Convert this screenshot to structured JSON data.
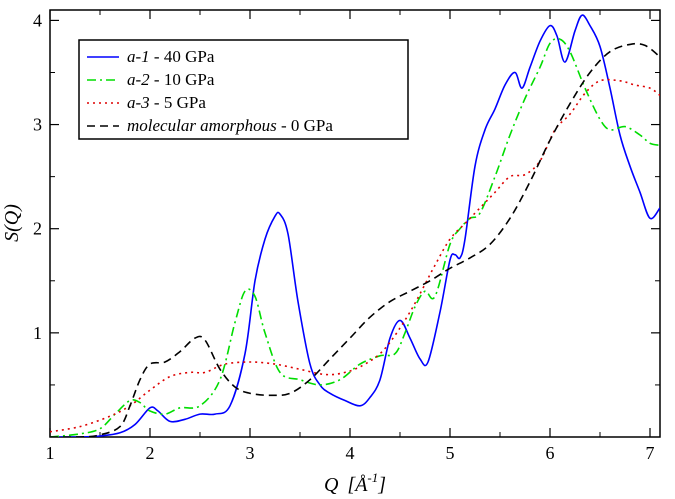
{
  "chart_data": {
    "type": "line",
    "title": "",
    "xlabel_main": "Q",
    "xlabel_unit": "[Å",
    "xlabel_sup": "-1",
    "xlabel_close": "]",
    "ylabel": "S(Q)",
    "xlim": [
      1,
      7.1
    ],
    "ylim": [
      0,
      4.1
    ],
    "xticks": [
      1,
      2,
      3,
      4,
      5,
      6,
      7
    ],
    "yticks": [
      1,
      2,
      3,
      4
    ],
    "grid": false,
    "legend_position": "top-left",
    "series": [
      {
        "name": "a-1",
        "label_italic": "a-1",
        "label_rest": " - 40 GPa",
        "color": "#0000ff",
        "dash": "solid",
        "x": [
          1.0,
          1.3,
          1.5,
          1.7,
          1.85,
          2.0,
          2.08,
          2.2,
          2.35,
          2.5,
          2.65,
          2.8,
          2.95,
          3.05,
          3.15,
          3.25,
          3.3,
          3.38,
          3.48,
          3.6,
          3.7,
          3.8,
          3.95,
          4.1,
          4.2,
          4.3,
          4.4,
          4.5,
          4.6,
          4.7,
          4.78,
          4.9,
          5.0,
          5.05,
          5.1,
          5.15,
          5.25,
          5.35,
          5.45,
          5.55,
          5.65,
          5.72,
          5.8,
          5.9,
          6.0,
          6.07,
          6.15,
          6.25,
          6.32,
          6.4,
          6.5,
          6.6,
          6.7,
          6.8,
          6.9,
          7.0,
          7.1
        ],
        "y": [
          0.0,
          0.0,
          0.01,
          0.04,
          0.12,
          0.28,
          0.25,
          0.15,
          0.17,
          0.22,
          0.22,
          0.3,
          0.8,
          1.5,
          1.9,
          2.12,
          2.14,
          1.95,
          1.3,
          0.7,
          0.5,
          0.42,
          0.35,
          0.3,
          0.38,
          0.55,
          0.95,
          1.12,
          0.95,
          0.75,
          0.72,
          1.2,
          1.7,
          1.75,
          1.72,
          1.9,
          2.6,
          2.95,
          3.15,
          3.38,
          3.5,
          3.35,
          3.55,
          3.8,
          3.95,
          3.85,
          3.6,
          3.9,
          4.05,
          3.95,
          3.75,
          3.35,
          2.9,
          2.6,
          2.35,
          2.1,
          2.2
        ]
      },
      {
        "name": "a-2",
        "label_italic": "a-2",
        "label_rest": " - 10 GPa",
        "color": "#00dd00",
        "dash": "dashdot",
        "x": [
          1.0,
          1.3,
          1.5,
          1.65,
          1.8,
          1.9,
          2.0,
          2.15,
          2.3,
          2.5,
          2.7,
          2.85,
          2.95,
          3.05,
          3.15,
          3.3,
          3.5,
          3.7,
          3.9,
          4.1,
          4.3,
          4.45,
          4.55,
          4.65,
          4.75,
          4.85,
          5.0,
          5.1,
          5.2,
          5.3,
          5.45,
          5.6,
          5.75,
          5.9,
          6.0,
          6.1,
          6.2,
          6.35,
          6.5,
          6.6,
          6.75,
          6.9,
          7.0,
          7.1
        ],
        "y": [
          0.0,
          0.03,
          0.08,
          0.22,
          0.35,
          0.33,
          0.25,
          0.22,
          0.28,
          0.3,
          0.55,
          1.1,
          1.4,
          1.35,
          1.0,
          0.62,
          0.55,
          0.5,
          0.55,
          0.7,
          0.78,
          0.8,
          1.0,
          1.25,
          1.4,
          1.35,
          1.85,
          2.0,
          2.1,
          2.15,
          2.5,
          2.9,
          3.25,
          3.55,
          3.78,
          3.82,
          3.7,
          3.35,
          3.05,
          2.95,
          2.98,
          2.9,
          2.82,
          2.8
        ]
      },
      {
        "name": "a-3",
        "label_italic": "a-3",
        "label_rest": " - 5 GPa",
        "color": "#dd0000",
        "dash": "dotted",
        "x": [
          1.0,
          1.3,
          1.6,
          1.8,
          2.0,
          2.2,
          2.4,
          2.55,
          2.75,
          3.0,
          3.25,
          3.5,
          3.75,
          3.95,
          4.15,
          4.35,
          4.6,
          4.85,
          5.0,
          5.15,
          5.3,
          5.45,
          5.6,
          5.75,
          5.9,
          6.05,
          6.2,
          6.35,
          6.5,
          6.7,
          6.85,
          7.0,
          7.1
        ],
        "y": [
          0.05,
          0.1,
          0.2,
          0.3,
          0.45,
          0.58,
          0.62,
          0.62,
          0.7,
          0.72,
          0.7,
          0.65,
          0.6,
          0.62,
          0.7,
          0.85,
          1.2,
          1.65,
          1.9,
          2.05,
          2.2,
          2.35,
          2.5,
          2.52,
          2.65,
          2.95,
          3.1,
          3.3,
          3.42,
          3.42,
          3.38,
          3.35,
          3.28
        ]
      },
      {
        "name": "molecular amorphous",
        "label_italic": "molecular amorphous",
        "label_rest": " - 0 GPa",
        "color": "#000000",
        "dash": "dashed",
        "x": [
          1.0,
          1.3,
          1.5,
          1.7,
          1.8,
          1.9,
          2.0,
          2.15,
          2.3,
          2.45,
          2.55,
          2.7,
          2.85,
          3.0,
          3.2,
          3.4,
          3.6,
          3.8,
          4.0,
          4.2,
          4.4,
          4.6,
          4.8,
          5.0,
          5.2,
          5.4,
          5.6,
          5.8,
          6.0,
          6.2,
          6.4,
          6.6,
          6.8,
          6.95,
          7.1
        ],
        "y": [
          0.0,
          0.0,
          0.02,
          0.1,
          0.3,
          0.55,
          0.7,
          0.72,
          0.82,
          0.95,
          0.93,
          0.65,
          0.48,
          0.42,
          0.4,
          0.42,
          0.55,
          0.75,
          0.95,
          1.15,
          1.3,
          1.4,
          1.5,
          1.62,
          1.72,
          1.85,
          2.1,
          2.45,
          2.85,
          3.2,
          3.5,
          3.7,
          3.77,
          3.76,
          3.65
        ]
      }
    ]
  }
}
